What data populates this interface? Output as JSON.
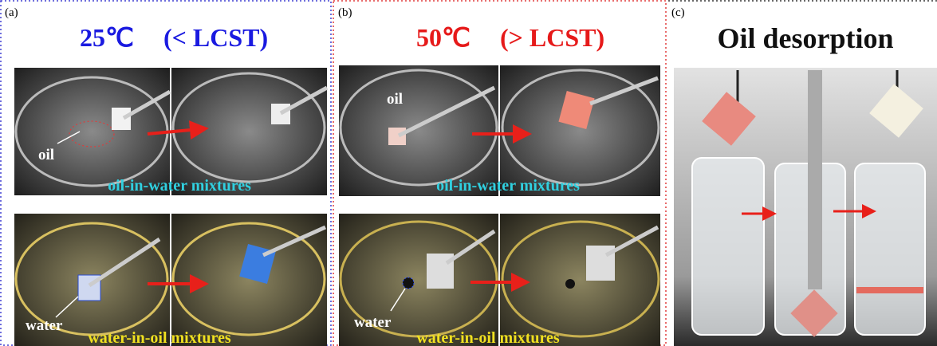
{
  "panels": [
    {
      "label": "(a)",
      "title": {
        "temperature": "25℃",
        "condition": "(< LCST)"
      },
      "rows": [
        {
          "annotation": "oil",
          "caption": "oil-in-water mixtures"
        },
        {
          "annotation": "water",
          "caption": "water-in-oil mixtures"
        }
      ]
    },
    {
      "label": "(b)",
      "title": {
        "temperature": "50℃",
        "condition": "(> LCST)"
      },
      "rows": [
        {
          "annotation": "oil",
          "caption": "oil-in-water mixtures"
        },
        {
          "annotation": "water",
          "caption": "water-in-oil mixtures"
        }
      ]
    },
    {
      "label": "(c)",
      "title": "Oil desorption"
    }
  ]
}
